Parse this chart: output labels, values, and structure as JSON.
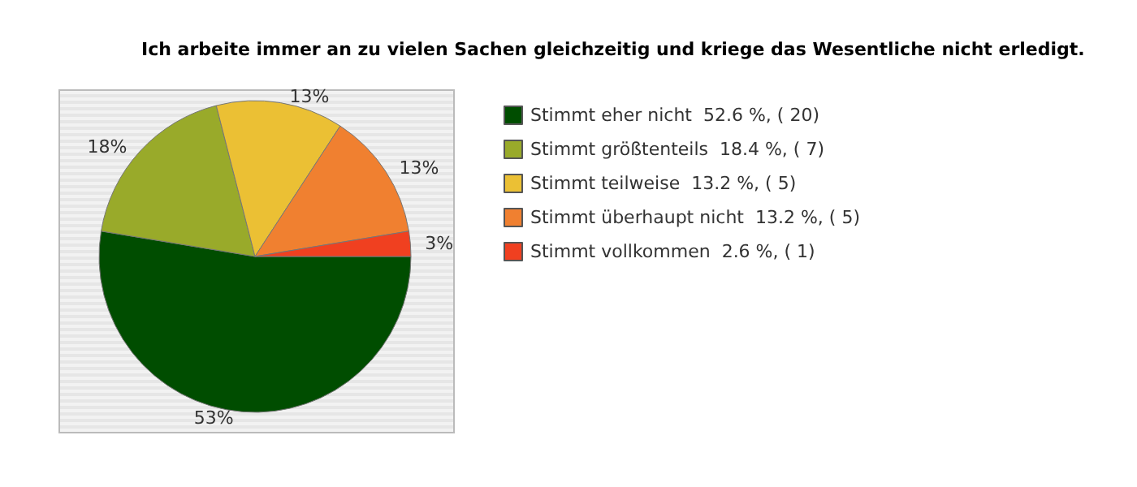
{
  "chart_data": {
    "type": "pie",
    "title": "Ich arbeite immer an zu vielen Sachen gleichzeitig und kriege das Wesentliche nicht erledigt.",
    "categories": [
      "Stimmt eher nicht  52.6 %, ( 20)",
      "Stimmt größtenteils  18.4 %, ( 7)",
      "Stimmt teilweise  13.2 %, ( 5)",
      "Stimmt überhaupt nicht  13.2 %, ( 5)",
      "Stimmt vollkommen  2.6 %, ( 1)"
    ],
    "values": [
      52.6,
      18.4,
      13.2,
      13.2,
      2.6
    ],
    "value_labels": [
      "53%",
      "18%",
      "13%",
      "13%",
      "3%"
    ],
    "colors": [
      "#004d00",
      "#99aa2a",
      "#ebc034",
      "#f08030",
      "#f04020"
    ],
    "legend": "right"
  }
}
